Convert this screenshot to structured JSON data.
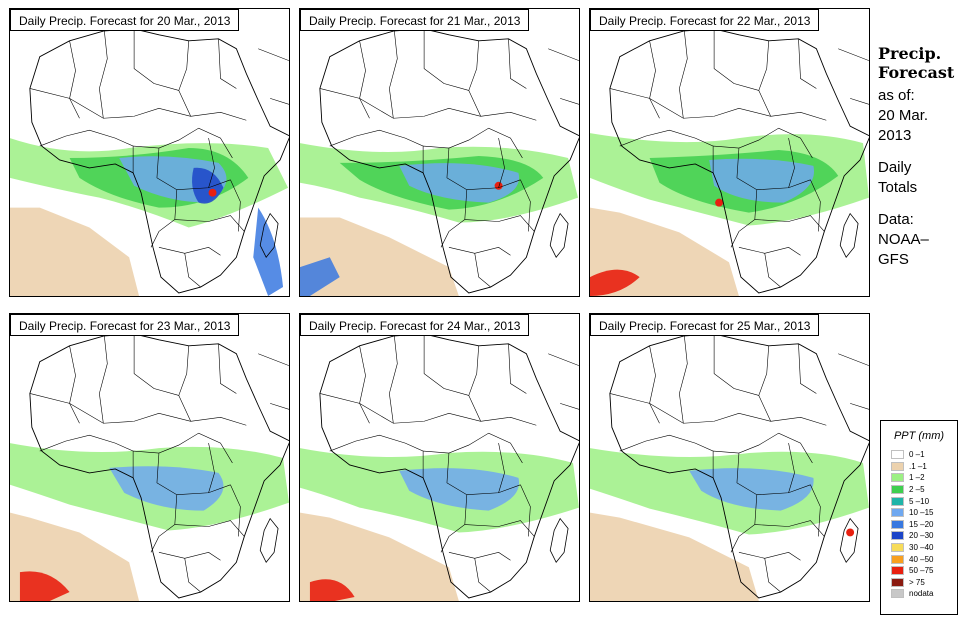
{
  "panels": [
    {
      "title": "Daily Precip. Forecast for  20 Mar., 2013"
    },
    {
      "title": "Daily Precip. Forecast for  21 Mar., 2013"
    },
    {
      "title": "Daily Precip. Forecast for  22 Mar., 2013"
    },
    {
      "title": "Daily Precip. Forecast for  23 Mar., 2013"
    },
    {
      "title": "Daily Precip. Forecast for  24 Mar., 2013"
    },
    {
      "title": "Daily Precip. Forecast for  25 Mar., 2013"
    }
  ],
  "side": {
    "title_line1": "Precip.",
    "title_line2": "Forecast",
    "asof_label": "as of:",
    "asof_day": "20 Mar.",
    "asof_year": "2013",
    "daily_line1": "Daily",
    "daily_line2": "Totals",
    "data_line1": "Data:",
    "data_line2": "NOAA–",
    "data_line3": "GFS"
  },
  "legend": {
    "title": "PPT (mm)",
    "items": [
      {
        "label": "0 –1",
        "color": "#ffffff"
      },
      {
        "label": ".1 –1",
        "color": "#ecd2ae"
      },
      {
        "label": "1 –2",
        "color": "#9cf084"
      },
      {
        "label": "2 –5",
        "color": "#3fcf4f"
      },
      {
        "label": "5 –10",
        "color": "#1fb4a8"
      },
      {
        "label": "10 –15",
        "color": "#6fa8f0"
      },
      {
        "label": "15 –20",
        "color": "#3878e0"
      },
      {
        "label": "20 –30",
        "color": "#1c45c8"
      },
      {
        "label": "30 –40",
        "color": "#f7dc5a"
      },
      {
        "label": "40 –50",
        "color": "#f8a020"
      },
      {
        "label": "50 –75",
        "color": "#e82010"
      },
      {
        "label": "> 75",
        "color": "#8a1a10"
      },
      {
        "label": "nodata",
        "color": "#c8c8c8"
      }
    ]
  }
}
